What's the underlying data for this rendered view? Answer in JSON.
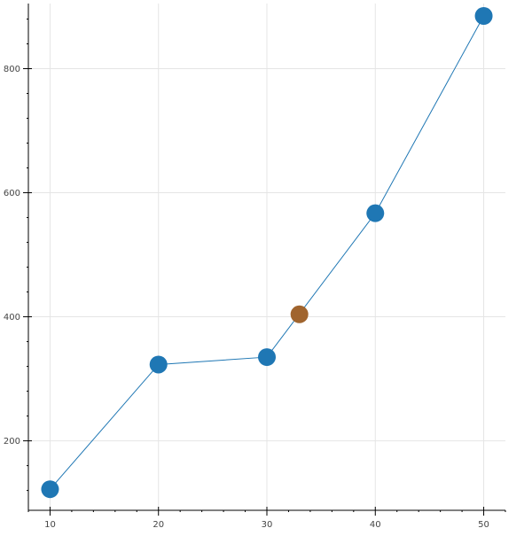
{
  "chart_data": {
    "type": "line",
    "title": "",
    "xlabel": "",
    "ylabel": "",
    "xlim": [
      8,
      52
    ],
    "ylim": [
      88,
      905
    ],
    "x_ticks": [
      10,
      20,
      30,
      40,
      50
    ],
    "y_ticks": [
      200,
      400,
      600,
      800
    ],
    "grid": true,
    "series": [
      {
        "color": "#1f77b4",
        "x": [
          10,
          20,
          30,
          40,
          50
        ],
        "y": [
          122,
          323,
          335,
          567,
          885
        ]
      }
    ],
    "highlight_points": [
      {
        "x": 33,
        "y": 404,
        "color": "#a0642e"
      }
    ]
  }
}
